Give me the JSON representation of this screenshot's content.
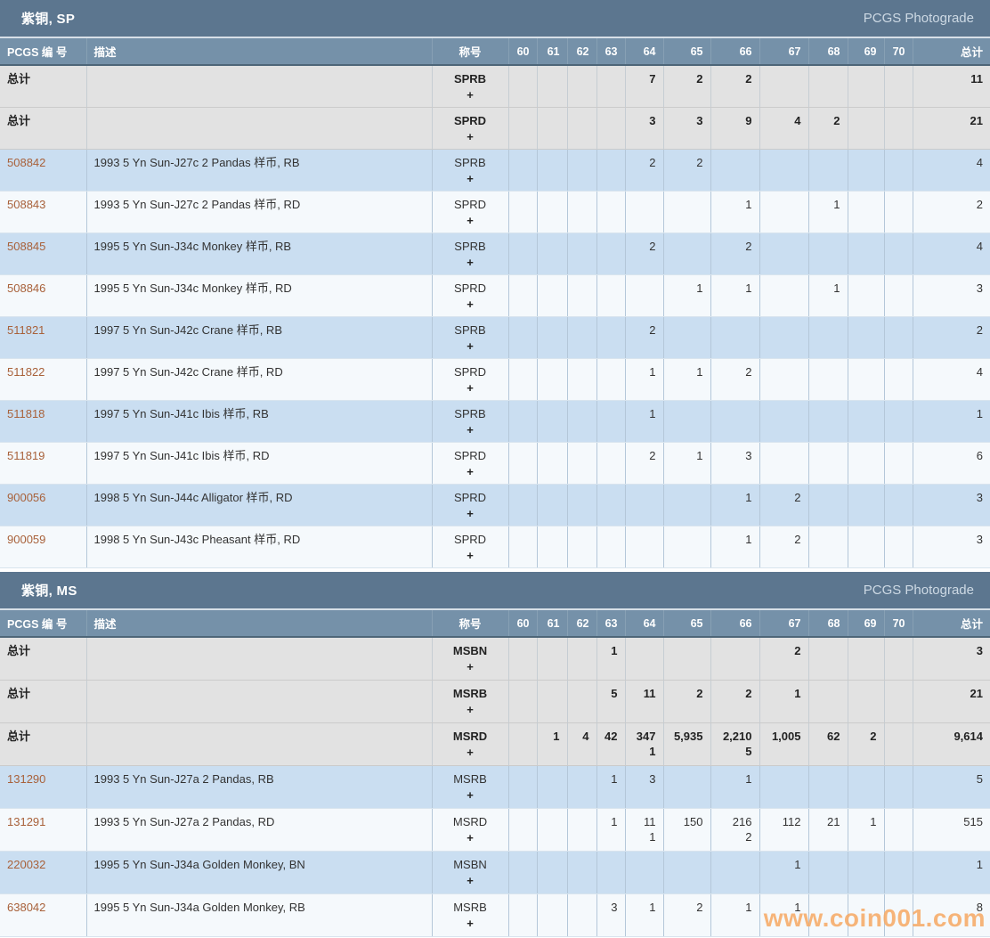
{
  "photograde_label": "PCGS Photograde",
  "watermark": "www.coin001.com",
  "columns": {
    "pcgs": "PCGS 编 号",
    "desc": "描述",
    "designation": "称号",
    "grades": [
      "60",
      "61",
      "62",
      "63",
      "64",
      "65",
      "66",
      "67",
      "68",
      "69",
      "70"
    ],
    "total": "总计"
  },
  "total_label": "总计",
  "plus_symbol": "+",
  "colors": {
    "band_bg": "#5c768f",
    "header_bg": "#7591a9",
    "total_row_bg": "#e2e2e2",
    "blue_row_bg": "#cadef1",
    "white_row_bg": "#f5f9fc",
    "link_color": "#a8613a",
    "watermark_color": "#f7a963"
  },
  "sections": [
    {
      "title": "紫铜, SP",
      "rows": [
        {
          "type": "total",
          "pcgs": "总计",
          "desc": "",
          "designation": "SPRB",
          "grades": [
            "",
            "",
            "",
            "",
            "7",
            "2",
            "2",
            "",
            "",
            "",
            ""
          ],
          "total": "11"
        },
        {
          "type": "total",
          "pcgs": "总计",
          "desc": "",
          "designation": "SPRD",
          "grades": [
            "",
            "",
            "",
            "",
            "3",
            "3",
            "9",
            "4",
            "2",
            "",
            ""
          ],
          "total": "21"
        },
        {
          "type": "data",
          "pcgs": "508842",
          "desc": "1993 5 Yn Sun-J27c 2 Pandas 样币, RB",
          "designation": "SPRB",
          "grades": [
            "",
            "",
            "",
            "",
            "2",
            "2",
            "",
            "",
            "",
            "",
            ""
          ],
          "total": "4"
        },
        {
          "type": "data",
          "pcgs": "508843",
          "desc": "1993 5 Yn Sun-J27c 2 Pandas 样币, RD",
          "designation": "SPRD",
          "grades": [
            "",
            "",
            "",
            "",
            "",
            "",
            "1",
            "",
            "1",
            "",
            ""
          ],
          "total": "2"
        },
        {
          "type": "data",
          "pcgs": "508845",
          "desc": "1995 5 Yn Sun-J34c Monkey 样币, RB",
          "designation": "SPRB",
          "grades": [
            "",
            "",
            "",
            "",
            "2",
            "",
            "2",
            "",
            "",
            "",
            ""
          ],
          "total": "4"
        },
        {
          "type": "data",
          "pcgs": "508846",
          "desc": "1995 5 Yn Sun-J34c Monkey 样币, RD",
          "designation": "SPRD",
          "grades": [
            "",
            "",
            "",
            "",
            "",
            "1",
            "1",
            "",
            "1",
            "",
            ""
          ],
          "total": "3"
        },
        {
          "type": "data",
          "pcgs": "511821",
          "desc": "1997 5 Yn Sun-J42c Crane 样币, RB",
          "designation": "SPRB",
          "grades": [
            "",
            "",
            "",
            "",
            "2",
            "",
            "",
            "",
            "",
            "",
            ""
          ],
          "total": "2"
        },
        {
          "type": "data",
          "pcgs": "511822",
          "desc": "1997 5 Yn Sun-J42c Crane 样币, RD",
          "designation": "SPRD",
          "grades": [
            "",
            "",
            "",
            "",
            "1",
            "1",
            "2",
            "",
            "",
            "",
            ""
          ],
          "total": "4"
        },
        {
          "type": "data",
          "pcgs": "511818",
          "desc": "1997 5 Yn Sun-J41c Ibis 样币, RB",
          "designation": "SPRB",
          "grades": [
            "",
            "",
            "",
            "",
            "1",
            "",
            "",
            "",
            "",
            "",
            ""
          ],
          "total": "1"
        },
        {
          "type": "data",
          "pcgs": "511819",
          "desc": "1997 5 Yn Sun-J41c Ibis 样币, RD",
          "designation": "SPRD",
          "grades": [
            "",
            "",
            "",
            "",
            "2",
            "1",
            "3",
            "",
            "",
            "",
            ""
          ],
          "total": "6"
        },
        {
          "type": "data",
          "pcgs": "900056",
          "desc": "1998 5 Yn Sun-J44c Alligator 样币, RD",
          "designation": "SPRD",
          "grades": [
            "",
            "",
            "",
            "",
            "",
            "",
            "1",
            "2",
            "",
            "",
            ""
          ],
          "total": "3"
        },
        {
          "type": "data",
          "pcgs": "900059",
          "desc": "1998 5 Yn Sun-J43c Pheasant 样币, RD",
          "designation": "SPRD",
          "grades": [
            "",
            "",
            "",
            "",
            "",
            "",
            "1",
            "2",
            "",
            "",
            ""
          ],
          "total": "3"
        }
      ]
    },
    {
      "title": "紫铜, MS",
      "rows": [
        {
          "type": "total",
          "pcgs": "总计",
          "desc": "",
          "designation": "MSBN",
          "grades": [
            "",
            "",
            "",
            "1",
            "",
            "",
            "",
            "2",
            "",
            "",
            ""
          ],
          "total": "3"
        },
        {
          "type": "total",
          "pcgs": "总计",
          "desc": "",
          "designation": "MSRB",
          "grades": [
            "",
            "",
            "",
            "5",
            "11",
            "2",
            "2",
            "1",
            "",
            "",
            ""
          ],
          "total": "21"
        },
        {
          "type": "total",
          "pcgs": "总计",
          "desc": "",
          "designation": "MSRD",
          "grades": [
            "",
            "1",
            "4",
            "42",
            [
              "347",
              "1"
            ],
            "5,935",
            [
              "2,210",
              "5"
            ],
            "1,005",
            "62",
            "2",
            ""
          ],
          "total": "9,614"
        },
        {
          "type": "data",
          "pcgs": "131290",
          "desc": "1993 5 Yn Sun-J27a 2 Pandas, RB",
          "designation": "MSRB",
          "grades": [
            "",
            "",
            "",
            "1",
            "3",
            "",
            "1",
            "",
            "",
            "",
            ""
          ],
          "total": "5"
        },
        {
          "type": "data",
          "pcgs": "131291",
          "desc": "1993 5 Yn Sun-J27a 2 Pandas, RD",
          "designation": "MSRD",
          "grades": [
            "",
            "",
            "",
            "1",
            [
              "11",
              "1"
            ],
            "150",
            [
              "216",
              "2"
            ],
            "112",
            "21",
            "1",
            ""
          ],
          "total": "515"
        },
        {
          "type": "data",
          "pcgs": "220032",
          "desc": "1995 5 Yn Sun-J34a Golden Monkey, BN",
          "designation": "MSBN",
          "grades": [
            "",
            "",
            "",
            "",
            "",
            "",
            "",
            "1",
            "",
            "",
            ""
          ],
          "total": "1"
        },
        {
          "type": "data",
          "pcgs": "638042",
          "desc": "1995 5 Yn Sun-J34a Golden Monkey, RB",
          "designation": "MSRB",
          "grades": [
            "",
            "",
            "",
            "3",
            "1",
            "2",
            "1",
            "1",
            "",
            "",
            ""
          ],
          "total": "8"
        }
      ]
    }
  ]
}
